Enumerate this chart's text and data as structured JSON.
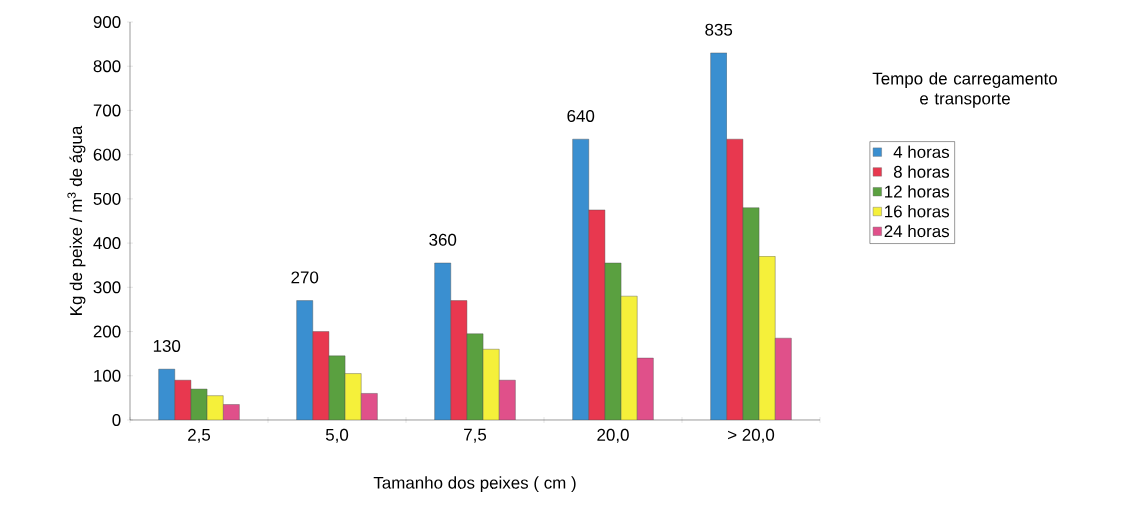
{
  "chart_data": {
    "type": "bar",
    "xlabel": "Tamanho dos peixes ( cm )",
    "ylabel": "Kg de peixe / m$^{3}$ de água",
    "legend_title": "Tempo de carregamento e transporte",
    "legend": "right",
    "grid": false,
    "categories": [
      "2,5",
      "5,0",
      "7,5",
      "20,0",
      "> 20,0"
    ],
    "ylim": [
      0,
      900
    ],
    "yticks": [
      0,
      100,
      200,
      300,
      400,
      500,
      600,
      700,
      800,
      900
    ],
    "series": [
      {
        "name": "4 horas",
        "color": "#3a8fd0",
        "values": [
          115,
          270,
          355,
          635,
          830
        ]
      },
      {
        "name": "8 horas",
        "color": "#e8384f",
        "values": [
          90,
          200,
          270,
          475,
          635
        ]
      },
      {
        "name": "12 horas",
        "color": "#5aa040",
        "values": [
          70,
          145,
          195,
          355,
          480
        ]
      },
      {
        "name": "16 horas",
        "color": "#f5f03a",
        "values": [
          55,
          105,
          160,
          280,
          370
        ]
      },
      {
        "name": "24 horas",
        "color": "#e0508a",
        "values": [
          35,
          60,
          90,
          140,
          185
        ]
      }
    ],
    "annotations": [
      "130",
      "270",
      "360",
      "640",
      "835"
    ]
  }
}
